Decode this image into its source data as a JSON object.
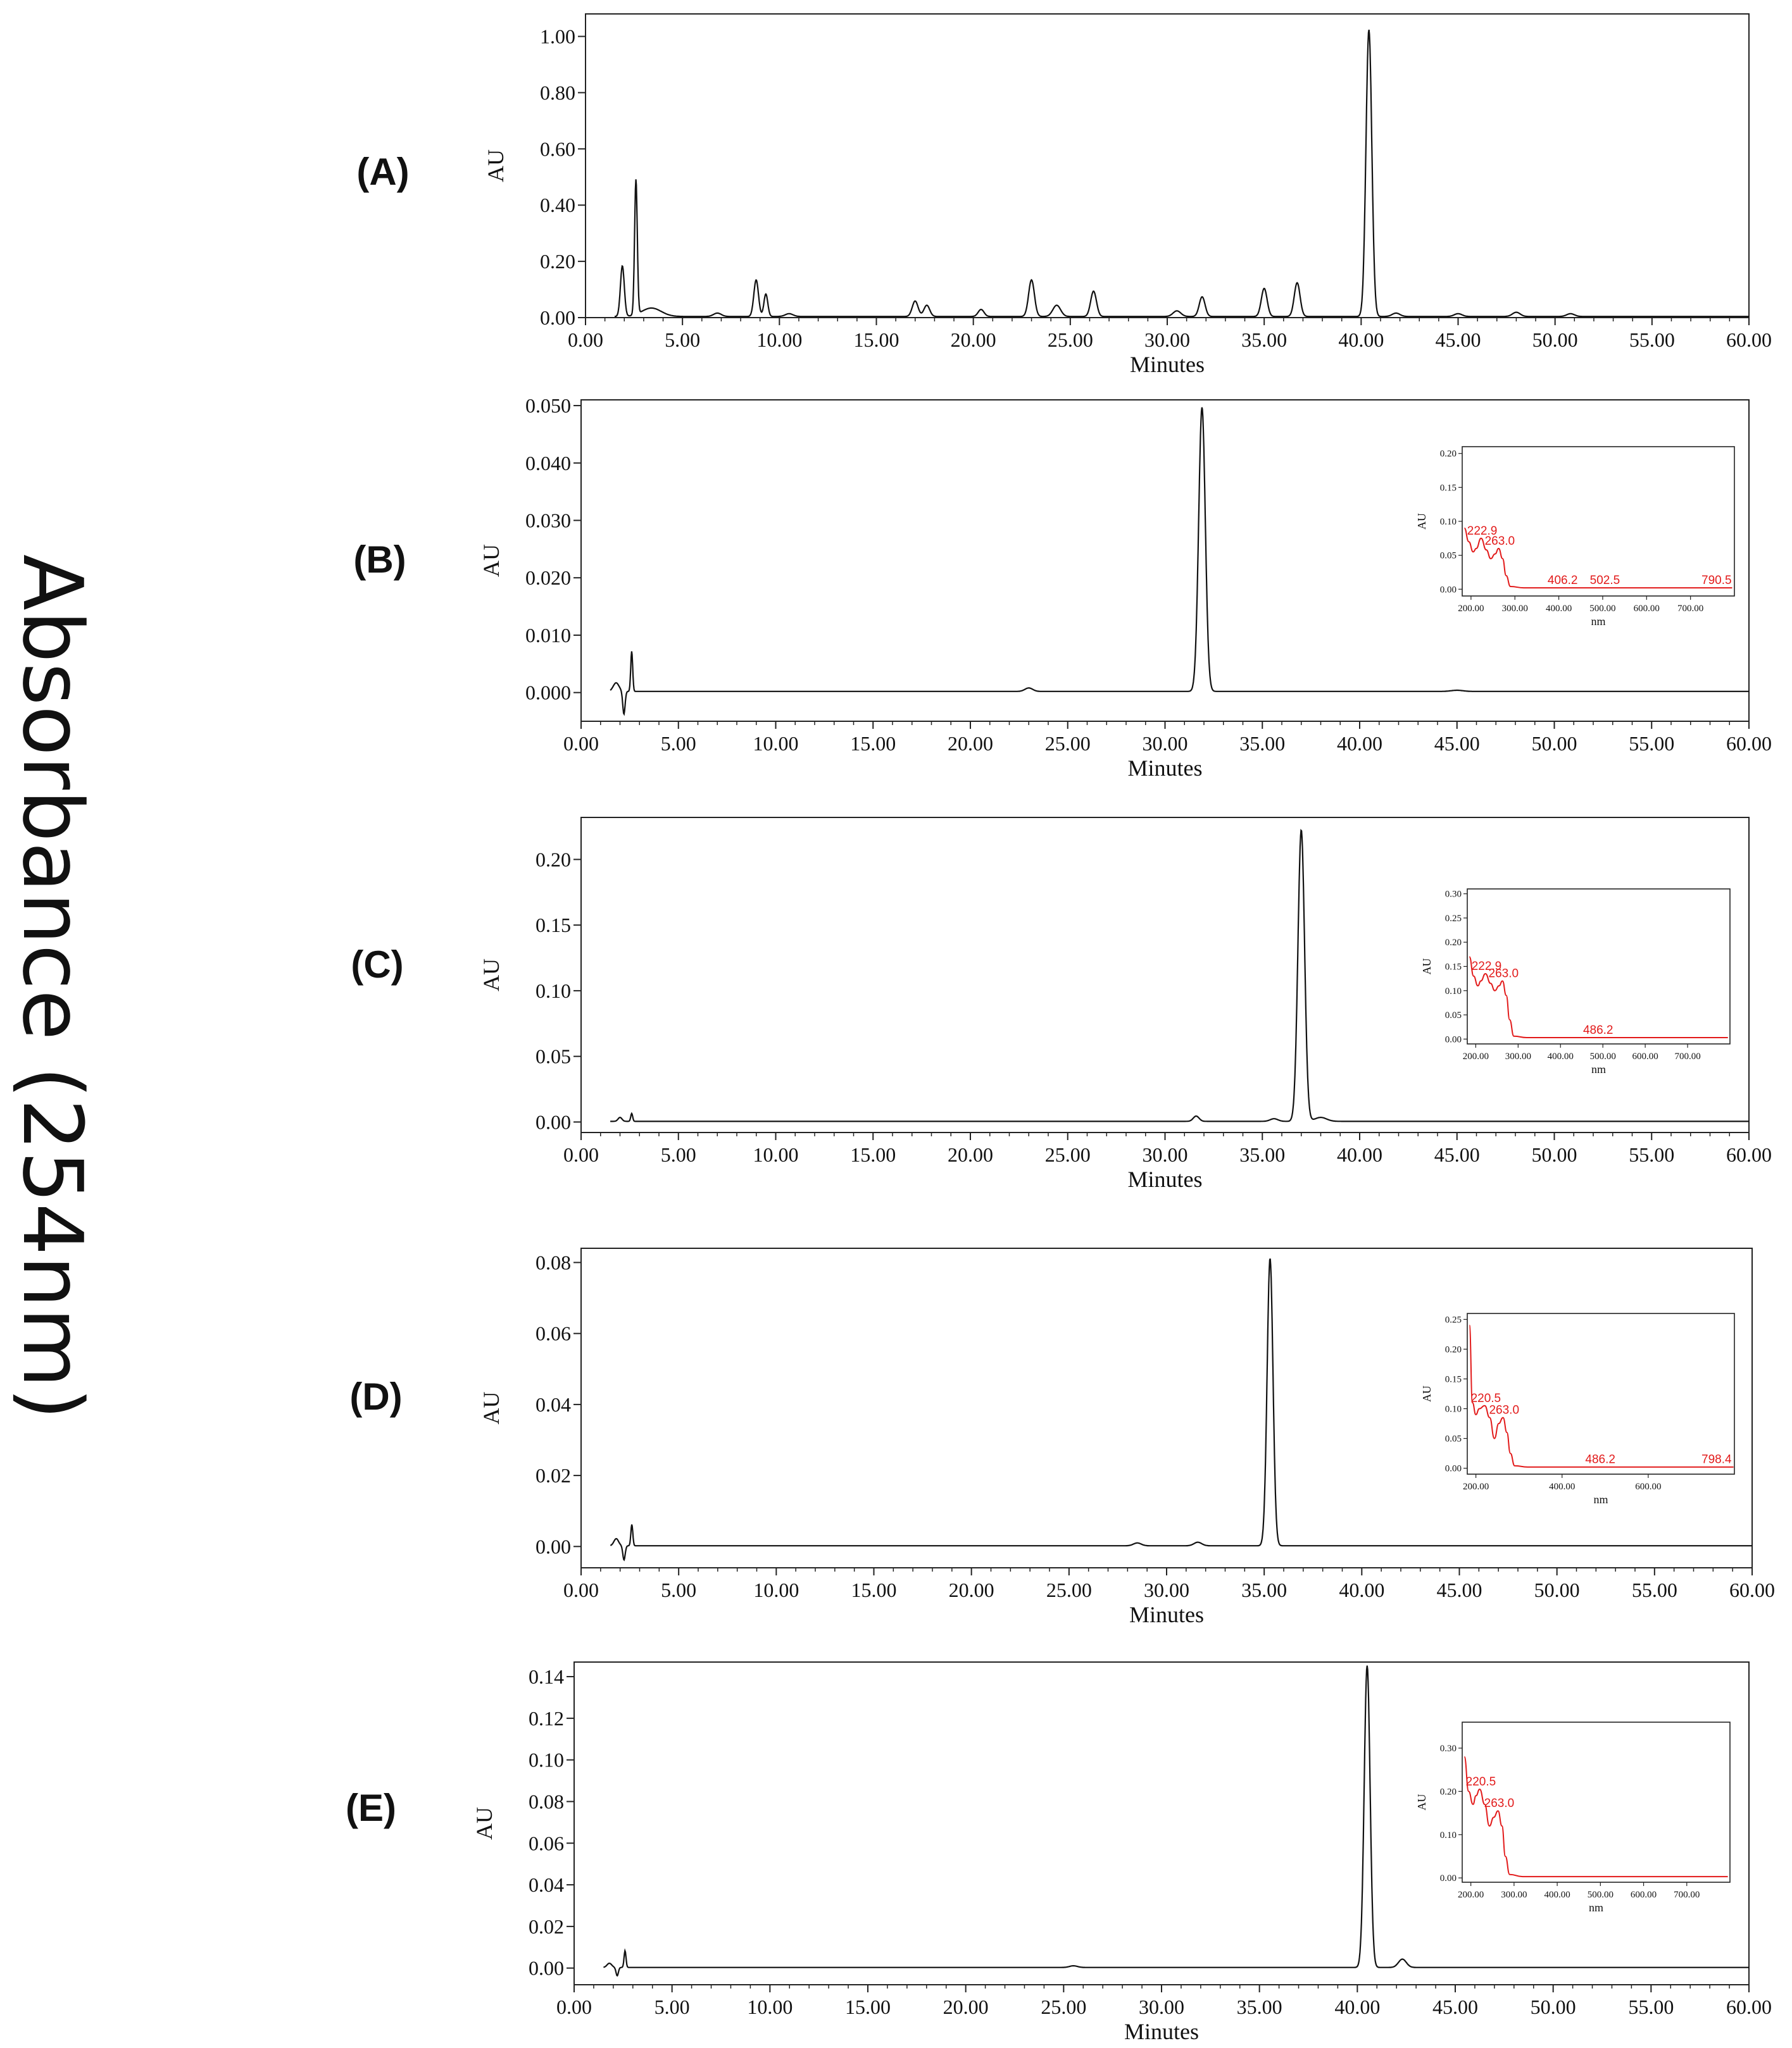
{
  "figure": {
    "ylabel": "Absorbance (254nm)"
  },
  "chart_data": [
    {
      "type": "line",
      "label": "(A)",
      "xlabel": "Minutes",
      "ylabel": "AU",
      "xlim": [
        0,
        60
      ],
      "ylim": [
        0,
        1.08
      ],
      "xticks": [
        "0.00",
        "5.00",
        "10.00",
        "15.00",
        "20.00",
        "25.00",
        "30.00",
        "35.00",
        "40.00",
        "45.00",
        "50.00",
        "55.00",
        "60.00"
      ],
      "yticks": [
        {
          "v": 0,
          "t": "0.00"
        },
        {
          "v": 0.2,
          "t": "0.20"
        },
        {
          "v": 0.4,
          "t": "0.40"
        },
        {
          "v": 0.6,
          "t": "0.60"
        },
        {
          "v": 0.8,
          "t": "0.80"
        },
        {
          "v": 1.0,
          "t": "1.00"
        }
      ],
      "baseline": 0.004,
      "peaks": [
        [
          1.9,
          0.18,
          0.1
        ],
        [
          2.6,
          0.48,
          0.07
        ],
        [
          3.4,
          0.03,
          0.5
        ],
        [
          6.8,
          0.012,
          0.2
        ],
        [
          8.8,
          0.13,
          0.12
        ],
        [
          9.3,
          0.08,
          0.1
        ],
        [
          10.5,
          0.01,
          0.2
        ],
        [
          17.0,
          0.055,
          0.15
        ],
        [
          17.6,
          0.04,
          0.15
        ],
        [
          20.4,
          0.025,
          0.15
        ],
        [
          23.0,
          0.13,
          0.15
        ],
        [
          24.3,
          0.04,
          0.2
        ],
        [
          26.2,
          0.09,
          0.15
        ],
        [
          30.5,
          0.02,
          0.2
        ],
        [
          31.8,
          0.07,
          0.15
        ],
        [
          35.0,
          0.1,
          0.15
        ],
        [
          36.7,
          0.12,
          0.15
        ],
        [
          40.4,
          1.02,
          0.15
        ],
        [
          41.8,
          0.012,
          0.2
        ],
        [
          45.0,
          0.01,
          0.2
        ],
        [
          48.0,
          0.015,
          0.2
        ],
        [
          50.8,
          0.01,
          0.2
        ]
      ]
    },
    {
      "type": "line",
      "label": "(B)",
      "xlabel": "Minutes",
      "ylabel": "AU",
      "xlim": [
        0,
        60
      ],
      "ylim": [
        -0.005,
        0.051
      ],
      "xticks": [
        "0.00",
        "5.00",
        "10.00",
        "15.00",
        "20.00",
        "25.00",
        "30.00",
        "35.00",
        "40.00",
        "45.00",
        "50.00",
        "55.00",
        "60.00"
      ],
      "yticks": [
        {
          "v": 0,
          "t": "0.000"
        },
        {
          "v": 0.01,
          "t": "0.010"
        },
        {
          "v": 0.02,
          "t": "0.020"
        },
        {
          "v": 0.03,
          "t": "0.030"
        },
        {
          "v": 0.04,
          "t": "0.040"
        },
        {
          "v": 0.05,
          "t": "0.050"
        }
      ],
      "baseline": 0.0002,
      "peaks": [
        [
          1.8,
          0.0015,
          0.15
        ],
        [
          2.2,
          -0.004,
          0.06
        ],
        [
          2.6,
          0.007,
          0.05
        ],
        [
          23.0,
          0.0006,
          0.2
        ],
        [
          31.9,
          0.0495,
          0.17
        ],
        [
          45.0,
          0.0002,
          0.3
        ]
      ],
      "inset": {
        "type": "line",
        "xlabel": "nm",
        "ylabel": "AU",
        "xlim": [
          180,
          800
        ],
        "ylim": [
          -0.01,
          0.21
        ],
        "xticks": [
          {
            "v": 200,
            "t": "200.00"
          },
          {
            "v": 300,
            "t": "300.00"
          },
          {
            "v": 400,
            "t": "400.00"
          },
          {
            "v": 500,
            "t": "500.00"
          },
          {
            "v": 600,
            "t": "600.00"
          },
          {
            "v": 700,
            "t": "700.00"
          }
        ],
        "yticks": [
          {
            "v": 0,
            "t": "0.00"
          },
          {
            "v": 0.05,
            "t": "0.05"
          },
          {
            "v": 0.1,
            "t": "0.10"
          },
          {
            "v": 0.15,
            "t": "0.15"
          },
          {
            "v": 0.2,
            "t": "0.20"
          }
        ],
        "x": [
          185,
          195,
          205,
          212,
          222.9,
          235,
          245,
          255,
          263,
          272,
          280,
          290,
          320,
          400,
          500,
          600,
          700,
          795
        ],
        "y": [
          0.09,
          0.07,
          0.055,
          0.06,
          0.075,
          0.058,
          0.045,
          0.052,
          0.06,
          0.045,
          0.02,
          0.004,
          0.002,
          0.002,
          0.002,
          0.002,
          0.002,
          0.002
        ],
        "annotations": [
          {
            "x": 222.9,
            "y": 0.075,
            "t": "222.9"
          },
          {
            "x": 263.0,
            "y": 0.06,
            "t": "263.0"
          },
          {
            "x": 406.2,
            "y": 0.002,
            "t": "406.2"
          },
          {
            "x": 502.5,
            "y": 0.002,
            "t": "502.5"
          },
          {
            "x": 790.5,
            "y": 0.002,
            "t": "790.5"
          }
        ]
      }
    },
    {
      "type": "line",
      "label": "(C)",
      "xlabel": "Minutes",
      "ylabel": "AU",
      "xlim": [
        0,
        60
      ],
      "ylim": [
        -0.008,
        0.232
      ],
      "xticks": [
        "0.00",
        "5.00",
        "10.00",
        "15.00",
        "20.00",
        "25.00",
        "30.00",
        "35.00",
        "40.00",
        "45.00",
        "50.00",
        "55.00",
        "60.00"
      ],
      "yticks": [
        {
          "v": 0,
          "t": "0.00"
        },
        {
          "v": 0.05,
          "t": "0.05"
        },
        {
          "v": 0.1,
          "t": "0.10"
        },
        {
          "v": 0.15,
          "t": "0.15"
        },
        {
          "v": 0.2,
          "t": "0.20"
        }
      ],
      "baseline": 0.0005,
      "peaks": [
        [
          2.0,
          0.003,
          0.1
        ],
        [
          2.6,
          0.006,
          0.05
        ],
        [
          31.6,
          0.004,
          0.15
        ],
        [
          35.6,
          0.002,
          0.2
        ],
        [
          37.0,
          0.222,
          0.17
        ],
        [
          38.0,
          0.003,
          0.3
        ]
      ],
      "inset": {
        "type": "line",
        "xlabel": "nm",
        "ylabel": "AU",
        "xlim": [
          180,
          800
        ],
        "ylim": [
          -0.01,
          0.31
        ],
        "xticks": [
          {
            "v": 200,
            "t": "200.00"
          },
          {
            "v": 300,
            "t": "300.00"
          },
          {
            "v": 400,
            "t": "400.00"
          },
          {
            "v": 500,
            "t": "500.00"
          },
          {
            "v": 600,
            "t": "600.00"
          },
          {
            "v": 700,
            "t": "700.00"
          }
        ],
        "yticks": [
          {
            "v": 0,
            "t": "0.00"
          },
          {
            "v": 0.05,
            "t": "0.05"
          },
          {
            "v": 0.1,
            "t": "0.10"
          },
          {
            "v": 0.15,
            "t": "0.15"
          },
          {
            "v": 0.2,
            "t": "0.20"
          },
          {
            "v": 0.25,
            "t": "0.25"
          },
          {
            "v": 0.3,
            "t": "0.30"
          }
        ],
        "x": [
          185,
          195,
          205,
          212,
          222.9,
          235,
          245,
          255,
          263,
          272,
          280,
          290,
          320,
          400,
          486,
          600,
          700,
          795
        ],
        "y": [
          0.17,
          0.13,
          0.11,
          0.12,
          0.135,
          0.115,
          0.1,
          0.11,
          0.12,
          0.09,
          0.04,
          0.006,
          0.003,
          0.003,
          0.003,
          0.003,
          0.003,
          0.003
        ],
        "annotations": [
          {
            "x": 222.9,
            "y": 0.135,
            "t": "222.9"
          },
          {
            "x": 263.0,
            "y": 0.12,
            "t": "263.0"
          },
          {
            "x": 486.2,
            "y": 0.003,
            "t": "486.2"
          }
        ]
      }
    },
    {
      "type": "line",
      "label": "(D)",
      "xlabel": "Minutes",
      "ylabel": "AU",
      "xlim": [
        0,
        60
      ],
      "ylim": [
        -0.006,
        0.084
      ],
      "xticks": [
        "0.00",
        "5.00",
        "10.00",
        "15.00",
        "20.00",
        "25.00",
        "30.00",
        "35.00",
        "40.00",
        "45.00",
        "50.00",
        "55.00",
        "60.00"
      ],
      "yticks": [
        {
          "v": 0,
          "t": "0.00"
        },
        {
          "v": 0.02,
          "t": "0.02"
        },
        {
          "v": 0.04,
          "t": "0.04"
        },
        {
          "v": 0.06,
          "t": "0.06"
        },
        {
          "v": 0.08,
          "t": "0.08"
        }
      ],
      "baseline": 0.0002,
      "peaks": [
        [
          1.8,
          0.002,
          0.12
        ],
        [
          2.2,
          -0.004,
          0.06
        ],
        [
          2.6,
          0.006,
          0.05
        ],
        [
          28.5,
          0.0008,
          0.2
        ],
        [
          31.6,
          0.001,
          0.2
        ],
        [
          35.3,
          0.081,
          0.15
        ]
      ],
      "inset": {
        "type": "line",
        "xlabel": "nm",
        "ylabel": "AU",
        "xlim": [
          180,
          800
        ],
        "ylim": [
          -0.01,
          0.26
        ],
        "xticks": [
          {
            "v": 200,
            "t": "200.00"
          },
          {
            "v": 400,
            "t": "400.00"
          },
          {
            "v": 600,
            "t": "600.00"
          }
        ],
        "yticks": [
          {
            "v": 0,
            "t": "0.00"
          },
          {
            "v": 0.05,
            "t": "0.05"
          },
          {
            "v": 0.1,
            "t": "0.10"
          },
          {
            "v": 0.15,
            "t": "0.15"
          },
          {
            "v": 0.2,
            "t": "0.20"
          },
          {
            "v": 0.25,
            "t": "0.25"
          }
        ],
        "x": [
          185,
          192,
          200,
          208,
          220.5,
          232,
          243,
          253,
          263,
          272,
          280,
          290,
          320,
          400,
          486,
          600,
          700,
          798
        ],
        "y": [
          0.24,
          0.11,
          0.09,
          0.1,
          0.105,
          0.085,
          0.05,
          0.075,
          0.085,
          0.06,
          0.025,
          0.004,
          0.002,
          0.002,
          0.002,
          0.002,
          0.002,
          0.002
        ],
        "annotations": [
          {
            "x": 220.5,
            "y": 0.105,
            "t": "220.5"
          },
          {
            "x": 263.0,
            "y": 0.085,
            "t": "263.0"
          },
          {
            "x": 486.2,
            "y": 0.002,
            "t": "486.2"
          },
          {
            "x": 798.4,
            "y": 0.002,
            "t": "798.4"
          }
        ]
      }
    },
    {
      "type": "line",
      "label": "(E)",
      "xlabel": "Minutes",
      "ylabel": "AU",
      "xlim": [
        0,
        60
      ],
      "ylim": [
        -0.008,
        0.147
      ],
      "xticks": [
        "0.00",
        "5.00",
        "10.00",
        "15.00",
        "20.00",
        "25.00",
        "30.00",
        "35.00",
        "40.00",
        "45.00",
        "50.00",
        "55.00",
        "60.00"
      ],
      "yticks": [
        {
          "v": 0,
          "t": "0.00"
        },
        {
          "v": 0.02,
          "t": "0.02"
        },
        {
          "v": 0.04,
          "t": "0.04"
        },
        {
          "v": 0.06,
          "t": "0.06"
        },
        {
          "v": 0.08,
          "t": "0.08"
        },
        {
          "v": 0.1,
          "t": "0.10"
        },
        {
          "v": 0.12,
          "t": "0.12"
        },
        {
          "v": 0.14,
          "t": "0.14"
        }
      ],
      "baseline": 0.0003,
      "peaks": [
        [
          1.8,
          0.002,
          0.12
        ],
        [
          2.2,
          -0.004,
          0.06
        ],
        [
          2.6,
          0.008,
          0.05
        ],
        [
          25.5,
          0.0008,
          0.2
        ],
        [
          40.5,
          0.145,
          0.15
        ],
        [
          42.3,
          0.004,
          0.2
        ]
      ],
      "inset": {
        "type": "line",
        "xlabel": "nm",
        "ylabel": "AU",
        "xlim": [
          180,
          800
        ],
        "ylim": [
          -0.01,
          0.36
        ],
        "xticks": [
          {
            "v": 200,
            "t": "200.00"
          },
          {
            "v": 300,
            "t": "300.00"
          },
          {
            "v": 400,
            "t": "400.00"
          },
          {
            "v": 500,
            "t": "500.00"
          },
          {
            "v": 600,
            "t": "600.00"
          },
          {
            "v": 700,
            "t": "700.00"
          }
        ],
        "yticks": [
          {
            "v": 0,
            "t": "0.00"
          },
          {
            "v": 0.1,
            "t": "0.10"
          },
          {
            "v": 0.2,
            "t": "0.20"
          },
          {
            "v": 0.3,
            "t": "0.30"
          }
        ],
        "x": [
          185,
          195,
          205,
          212,
          220.5,
          232,
          243,
          253,
          263,
          272,
          280,
          290,
          320,
          400,
          500,
          600,
          700,
          795
        ],
        "y": [
          0.28,
          0.2,
          0.17,
          0.19,
          0.205,
          0.17,
          0.12,
          0.14,
          0.155,
          0.12,
          0.05,
          0.008,
          0.003,
          0.003,
          0.003,
          0.003,
          0.003,
          0.003
        ],
        "annotations": [
          {
            "x": 220.5,
            "y": 0.205,
            "t": "220.5"
          },
          {
            "x": 263.0,
            "y": 0.155,
            "t": "263.0"
          }
        ]
      }
    }
  ]
}
